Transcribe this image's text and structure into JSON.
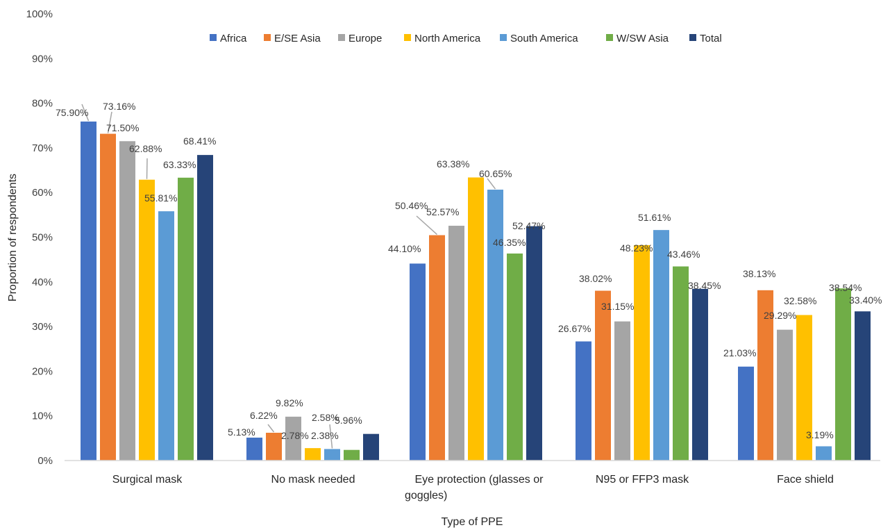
{
  "chart_data": {
    "type": "bar",
    "title": "",
    "xlabel": "Type of PPE",
    "ylabel": "Proportion of respondents",
    "ylim": [
      0,
      100
    ],
    "yticks": [
      0,
      10,
      20,
      30,
      40,
      50,
      60,
      70,
      80,
      90,
      100
    ],
    "ytick_labels": [
      "0%",
      "10%",
      "20%",
      "30%",
      "40%",
      "50%",
      "60%",
      "70%",
      "80%",
      "90%",
      "100%"
    ],
    "grid": false,
    "legend_position": "top-center",
    "categories": [
      [
        "Surgical mask"
      ],
      [
        "No mask needed"
      ],
      [
        "Eye protection (glasses or",
        "goggles)"
      ],
      [
        "N95 or FFP3 mask"
      ],
      [
        "Face shield"
      ]
    ],
    "series": [
      {
        "name": "Africa",
        "color": "#4472c4",
        "values": [
          75.9,
          5.13,
          44.1,
          26.67,
          21.03
        ],
        "labels": [
          "75.90%",
          "5.13%",
          "44.10%",
          "26.67%",
          "21.03%"
        ]
      },
      {
        "name": "E/SE Asia",
        "color": "#ed7d31",
        "values": [
          73.16,
          6.22,
          50.46,
          38.02,
          38.13
        ],
        "labels": [
          "73.16%",
          "6.22%",
          "50.46%",
          "38.02%",
          "38.13%"
        ]
      },
      {
        "name": "Europe",
        "color": "#a5a5a5",
        "values": [
          71.5,
          9.82,
          52.57,
          31.15,
          29.29
        ],
        "labels": [
          "71.50%",
          "9.82%",
          "52.57%",
          "31.15%",
          "29.29%"
        ]
      },
      {
        "name": "North America",
        "color": "#ffc000",
        "values": [
          62.88,
          2.78,
          63.38,
          48.23,
          32.58
        ],
        "labels": [
          "62.88%",
          "2.78%",
          "63.38%",
          "48.23%",
          "32.58%"
        ]
      },
      {
        "name": "South America",
        "color": "#5b9bd5",
        "values": [
          55.81,
          2.58,
          60.65,
          51.61,
          3.19
        ],
        "labels": [
          "55.81%",
          "2.58%",
          "60.65%",
          "51.61%",
          "3.19%"
        ]
      },
      {
        "name": "W/SW Asia",
        "color": "#70ad47",
        "values": [
          63.33,
          2.38,
          46.35,
          43.46,
          38.54
        ],
        "labels": [
          "63.33%",
          "2.38%",
          "46.35%",
          "43.46%",
          "38.54%"
        ]
      },
      {
        "name": "Total",
        "color": "#264478",
        "values": [
          68.41,
          5.96,
          52.47,
          38.45,
          33.4
        ],
        "labels": [
          "68.41%",
          "5.96%",
          "52.47%",
          "38.45%",
          "33.40%"
        ]
      }
    ]
  }
}
